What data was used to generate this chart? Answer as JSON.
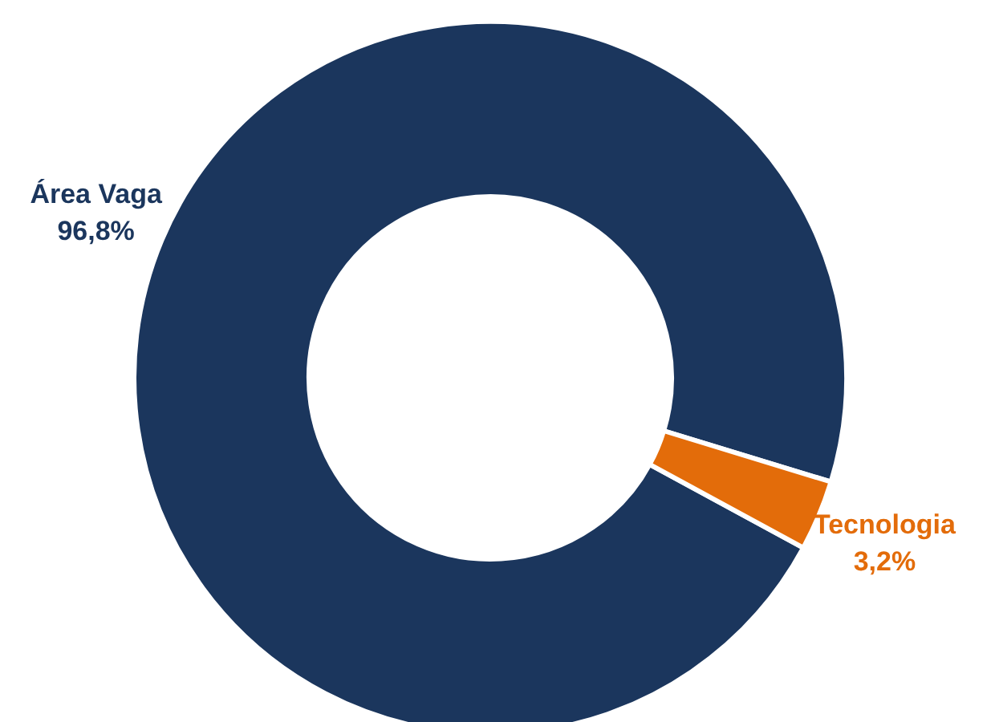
{
  "chart_data": {
    "type": "donut",
    "categories": [
      "Área Vaga",
      "Tecnologia"
    ],
    "values": [
      96.8,
      3.2
    ],
    "colors": [
      "#1b365d",
      "#e36c0a"
    ],
    "value_labels": [
      "96,8%",
      "3,2%"
    ]
  }
}
